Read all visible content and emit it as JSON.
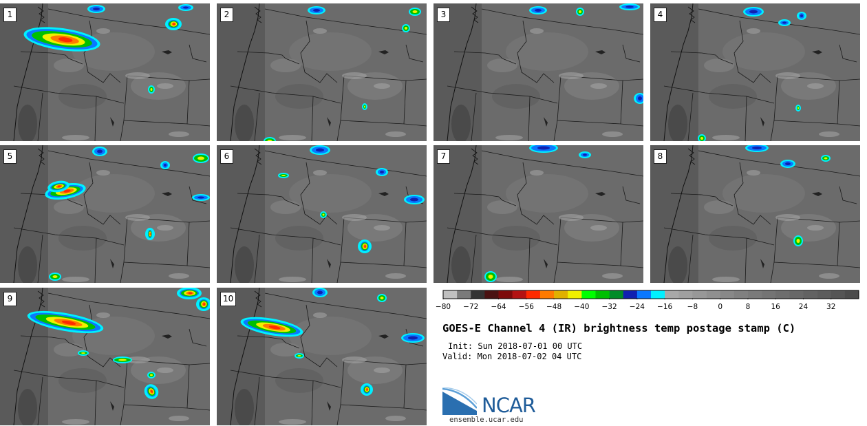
{
  "title": "GOES-E Channel 4 (IR) brightness temp postage stamp (C)",
  "init_text": "Init: Sun 2018-07-01 00 UTC",
  "valid_text": "Valid: Mon 2018-07-02 04 UTC",
  "logo_text": "NCAR",
  "website": "ensemble.ucar.edu",
  "colorbar": {
    "min": -80,
    "max": 40,
    "step": 4,
    "tick_labels": [
      "−80",
      "−72",
      "−64",
      "−56",
      "−48",
      "−40",
      "−32",
      "−24",
      "−16",
      "−8",
      "0",
      "8",
      "16",
      "24",
      "32"
    ],
    "tick_values": [
      -80,
      -72,
      -64,
      -56,
      -48,
      -40,
      -32,
      -24,
      -16,
      -8,
      0,
      8,
      16,
      24,
      32
    ],
    "colors": [
      "#c0c0c0",
      "#7a7a7a",
      "#333333",
      "#4a1212",
      "#7d0a0a",
      "#b31212",
      "#ff2a00",
      "#ff7a00",
      "#e0b000",
      "#f0f000",
      "#00ff00",
      "#00c000",
      "#008c28",
      "#1020b0",
      "#0a78ff",
      "#00f0ff",
      "#a8a8a8",
      "#a0a0a0",
      "#989898",
      "#909090",
      "#888888",
      "#808080",
      "#7a7a7a",
      "#747474",
      "#6e6e6e",
      "#686868",
      "#626262",
      "#5c5c5c",
      "#555555",
      "#4c4c4c"
    ]
  },
  "panels": [
    {
      "label": "1"
    },
    {
      "label": "2"
    },
    {
      "label": "3"
    },
    {
      "label": "4"
    },
    {
      "label": "5"
    },
    {
      "label": "6"
    },
    {
      "label": "7"
    },
    {
      "label": "8"
    },
    {
      "label": "9"
    },
    {
      "label": "10"
    }
  ]
}
